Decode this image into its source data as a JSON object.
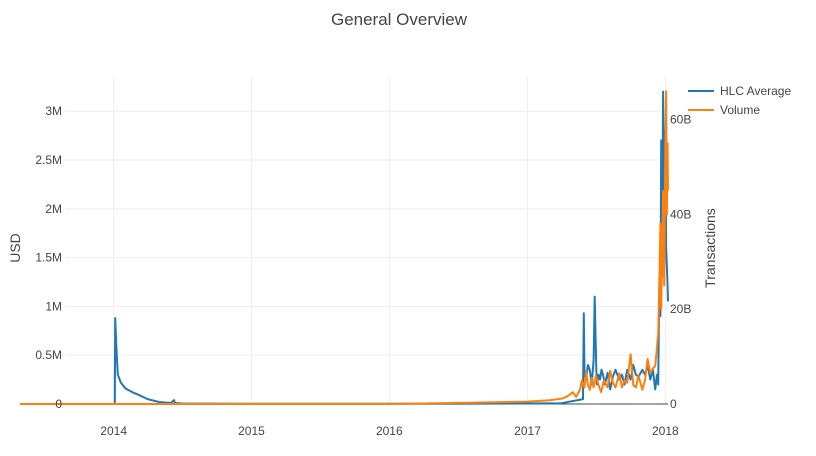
{
  "chart_data": {
    "type": "line",
    "title": "General Overview",
    "xlabel": "",
    "ylabel": "USD",
    "y2label": "Transactions",
    "x_ticks": [
      "2014",
      "2015",
      "2016",
      "2017",
      "2018"
    ],
    "y_ticks": [
      "0",
      "0.5M",
      "1M",
      "1.5M",
      "2M",
      "2.5M",
      "3M"
    ],
    "y2_ticks": [
      "0",
      "20B",
      "40B",
      "60B"
    ],
    "xlim": [
      "2013-04-28",
      "2018-01-08"
    ],
    "ylim": [
      0,
      3350000
    ],
    "y2lim": [
      0,
      69000000000
    ],
    "grid": true,
    "legend_position": "top-right",
    "colors": {
      "hlc": "#1f77b4",
      "volume": "#ff7f0e"
    },
    "series": [
      {
        "name": "HLC Average",
        "axis": "y",
        "x": [
          "2013-04-28",
          "2013-09-01",
          "2014-01-04",
          "2014-01-05",
          "2014-01-08",
          "2014-01-12",
          "2014-01-20",
          "2014-02-01",
          "2014-02-20",
          "2014-03-10",
          "2014-04-01",
          "2014-05-01",
          "2014-06-01",
          "2014-06-10",
          "2014-06-12",
          "2014-07-01",
          "2014-12-01",
          "2015-06-01",
          "2016-01-01",
          "2016-06-01",
          "2017-01-01",
          "2017-04-01",
          "2017-05-28",
          "2017-05-30",
          "2017-06-01",
          "2017-06-05",
          "2017-06-10",
          "2017-06-15",
          "2017-06-20",
          "2017-06-25",
          "2017-06-28",
          "2017-07-02",
          "2017-07-04",
          "2017-07-08",
          "2017-07-12",
          "2017-07-16",
          "2017-07-20",
          "2017-07-25",
          "2017-08-01",
          "2017-08-08",
          "2017-08-15",
          "2017-08-22",
          "2017-09-01",
          "2017-09-08",
          "2017-09-15",
          "2017-09-22",
          "2017-10-01",
          "2017-10-08",
          "2017-10-15",
          "2017-10-22",
          "2017-11-01",
          "2017-11-08",
          "2017-11-15",
          "2017-11-22",
          "2017-11-29",
          "2017-12-05",
          "2017-12-10",
          "2017-12-13",
          "2017-12-16",
          "2017-12-19",
          "2017-12-21",
          "2017-12-23",
          "2017-12-26",
          "2017-12-29",
          "2018-01-01",
          "2018-01-03",
          "2018-01-05",
          "2018-01-07",
          "2018-01-08"
        ],
        "y": [
          0,
          0,
          0,
          880000,
          600000,
          300000,
          220000,
          160000,
          120000,
          90000,
          50000,
          20000,
          10000,
          40000,
          10000,
          5000,
          3000,
          2000,
          2000,
          3000,
          5000,
          8000,
          50000,
          930000,
          300000,
          250000,
          400000,
          350000,
          200000,
          450000,
          1100000,
          350000,
          200000,
          300000,
          250000,
          350000,
          300000,
          200000,
          320000,
          150000,
          280000,
          350000,
          250000,
          300000,
          200000,
          350000,
          250000,
          400000,
          300000,
          280000,
          350000,
          300000,
          400000,
          250000,
          350000,
          150000,
          300000,
          200000,
          1200000,
          900000,
          2700000,
          1300000,
          3200000,
          2000000,
          2800000,
          1600000,
          1400000,
          1200000,
          1050000
        ]
      },
      {
        "name": "Volume",
        "axis": "y2",
        "x": [
          "2013-04-28",
          "2014-01-01",
          "2015-01-01",
          "2016-01-01",
          "2016-06-01",
          "2017-01-01",
          "2017-03-01",
          "2017-03-20",
          "2017-04-05",
          "2017-04-20",
          "2017-05-01",
          "2017-05-10",
          "2017-05-20",
          "2017-05-25",
          "2017-06-01",
          "2017-06-05",
          "2017-06-10",
          "2017-06-15",
          "2017-06-20",
          "2017-06-25",
          "2017-07-01",
          "2017-07-08",
          "2017-07-15",
          "2017-07-22",
          "2017-08-01",
          "2017-08-08",
          "2017-08-15",
          "2017-08-22",
          "2017-09-01",
          "2017-09-08",
          "2017-09-15",
          "2017-09-22",
          "2017-10-01",
          "2017-10-08",
          "2017-10-15",
          "2017-10-22",
          "2017-11-01",
          "2017-11-08",
          "2017-11-15",
          "2017-11-22",
          "2017-11-29",
          "2017-12-05",
          "2017-12-10",
          "2017-12-13",
          "2017-12-16",
          "2017-12-19",
          "2017-12-21",
          "2017-12-23",
          "2017-12-26",
          "2017-12-29",
          "2018-01-01",
          "2018-01-03",
          "2018-01-05",
          "2018-01-07",
          "2018-01-08"
        ],
        "y": [
          0,
          0,
          0,
          0,
          200000000,
          500000000,
          800000000,
          1000000000,
          1200000000,
          1800000000,
          2500000000,
          1500000000,
          3000000000,
          5000000000,
          3500000000,
          7000000000,
          4000000000,
          3000000000,
          5500000000,
          3500000000,
          6000000000,
          4000000000,
          2500000000,
          5000000000,
          3500000000,
          7000000000,
          4500000000,
          3500000000,
          6500000000,
          3500000000,
          5000000000,
          4500000000,
          10500000000,
          4000000000,
          3500000000,
          6000000000,
          3000000000,
          5000000000,
          9500000000,
          6500000000,
          7500000000,
          8000000000,
          12000000000,
          15000000000,
          25000000000,
          38000000000,
          20000000000,
          30000000000,
          45000000000,
          25000000000,
          55000000000,
          66000000000,
          40000000000,
          55000000000,
          45000000000
        ]
      }
    ]
  }
}
